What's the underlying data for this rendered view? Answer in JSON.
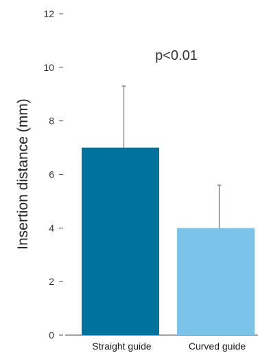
{
  "chart_data": {
    "type": "bar",
    "categories": [
      "Straight guide",
      "Curved guide"
    ],
    "values": [
      7.0,
      4.0
    ],
    "error_upper": [
      9.3,
      5.6
    ],
    "ylabel": "Insertion distance (mm)",
    "xlabel": "",
    "ylim": [
      0,
      12
    ],
    "yticks": [
      0,
      2,
      4,
      6,
      8,
      10,
      12
    ],
    "annotation": "p<0.01",
    "grid": false,
    "colors": [
      "#00729e",
      "#7cc3ea"
    ],
    "error_bar_color": "#777777"
  }
}
